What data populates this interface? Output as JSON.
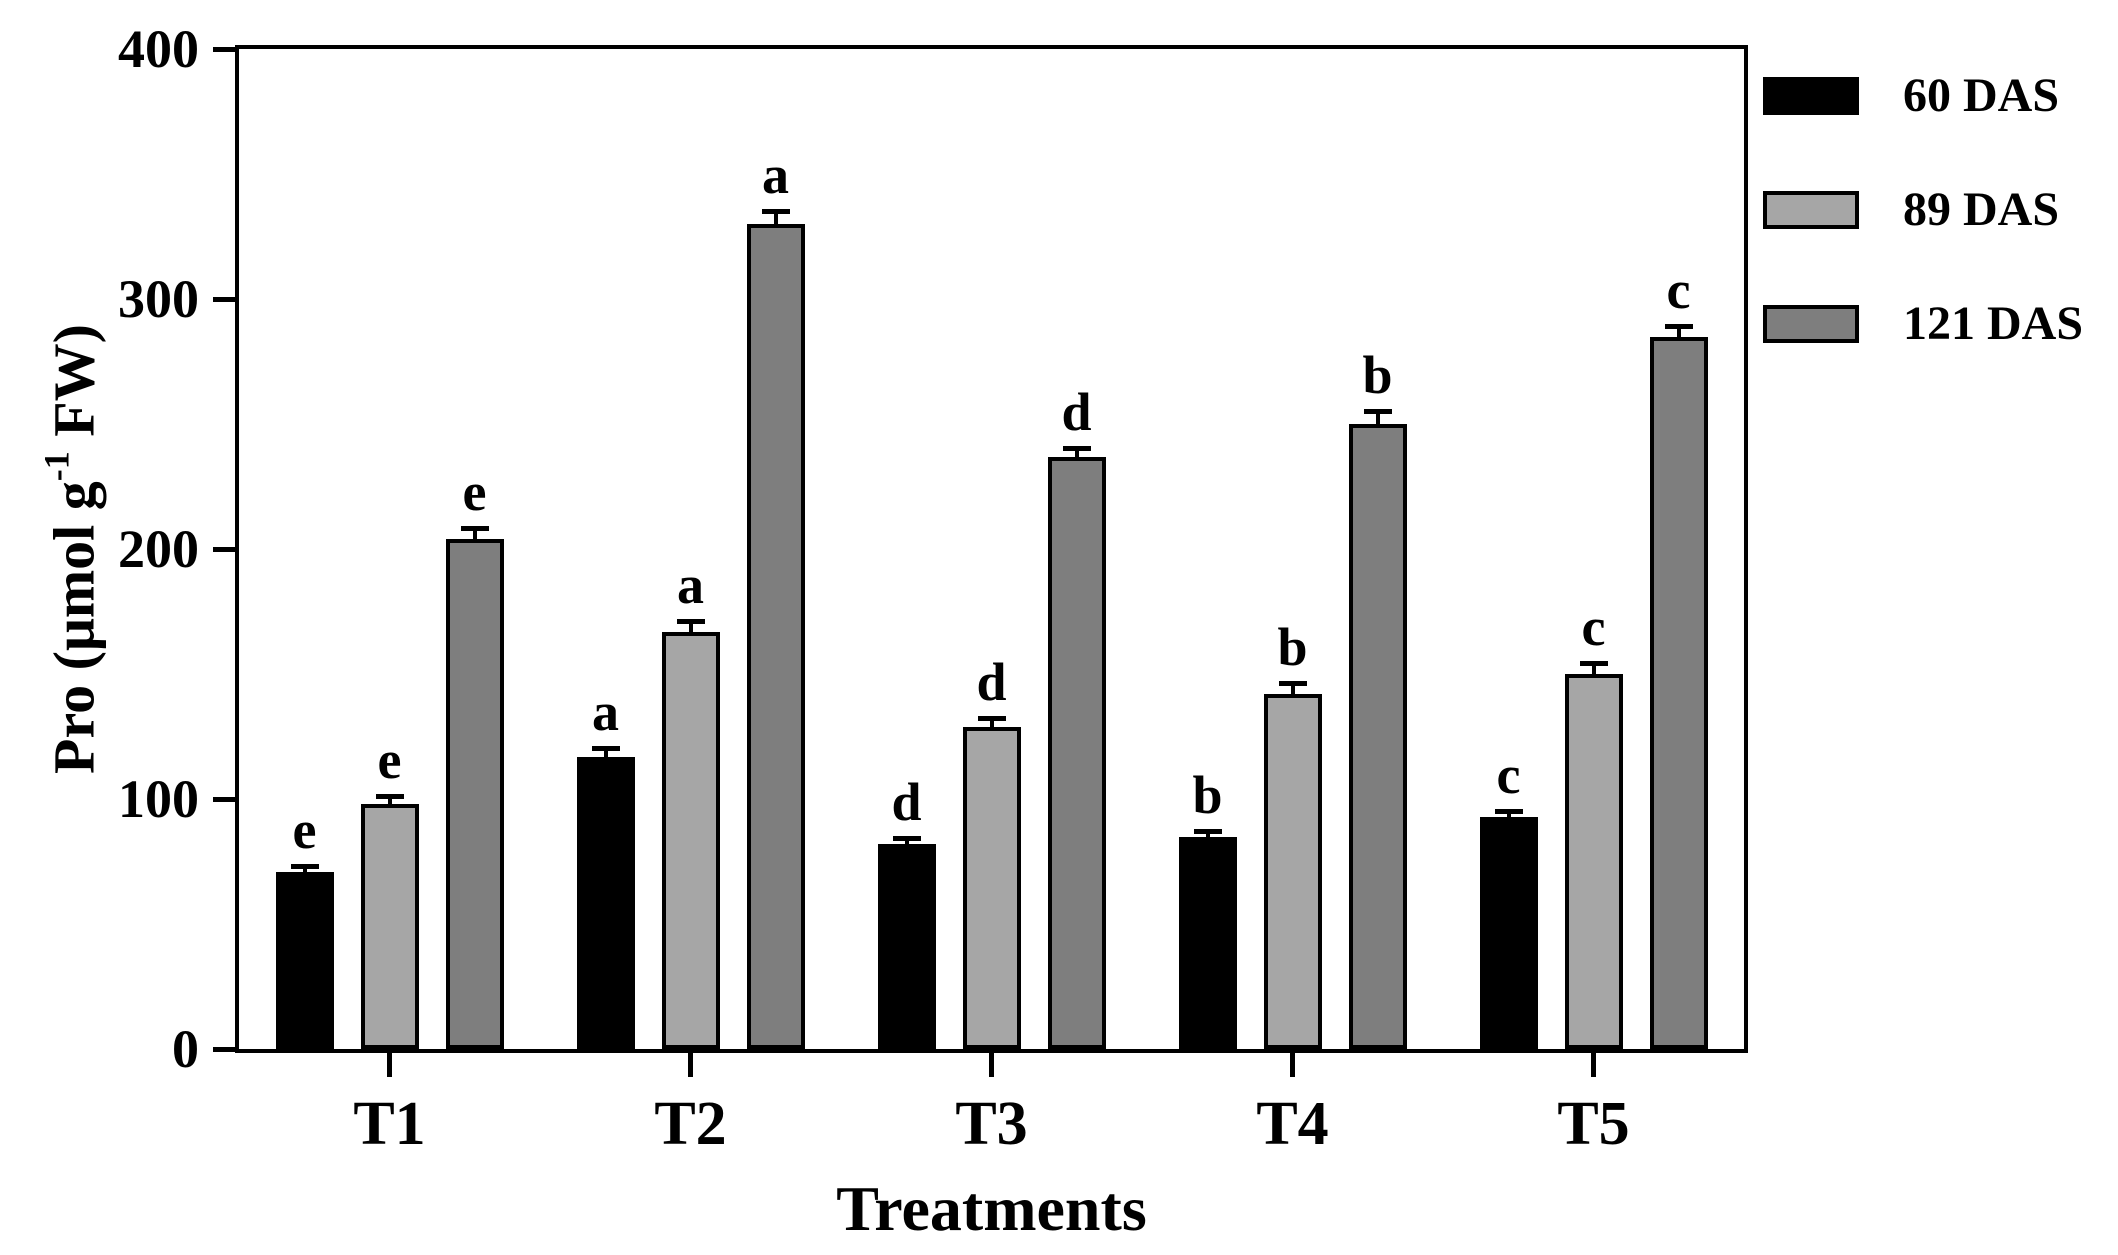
{
  "figure": {
    "background": "#ffffff",
    "ylabel_parts": {
      "pre": "Pro (μmol g",
      "sup": "-1",
      "post": " FW)"
    }
  },
  "chart_data": {
    "type": "bar",
    "title": "",
    "xlabel": "Treatments",
    "ylabel": "Pro (μmol g⁻¹ FW)",
    "ylim": [
      0,
      400
    ],
    "yticks": [
      0,
      100,
      200,
      300,
      400
    ],
    "grid": false,
    "legend_position": "right-outside",
    "categories": [
      "T1",
      "T2",
      "T3",
      "T4",
      "T5"
    ],
    "series": [
      {
        "name": "60 DAS",
        "color": "#000000",
        "values": [
          71,
          117,
          82,
          85,
          93
        ],
        "errors": [
          2,
          3,
          2,
          2,
          2
        ],
        "letters": [
          "e",
          "a",
          "d",
          "b",
          "c"
        ]
      },
      {
        "name": "89 DAS",
        "color": "#a6a6a6",
        "values": [
          98,
          167,
          129,
          142,
          150
        ],
        "errors": [
          3,
          4,
          3,
          4,
          4
        ],
        "letters": [
          "e",
          "a",
          "d",
          "b",
          "c"
        ]
      },
      {
        "name": "121 DAS",
        "color": "#7e7e7e",
        "values": [
          204,
          330,
          237,
          250,
          285
        ],
        "errors": [
          4,
          5,
          3,
          5,
          4
        ],
        "letters": [
          "e",
          "a",
          "d",
          "b",
          "c"
        ]
      }
    ]
  }
}
